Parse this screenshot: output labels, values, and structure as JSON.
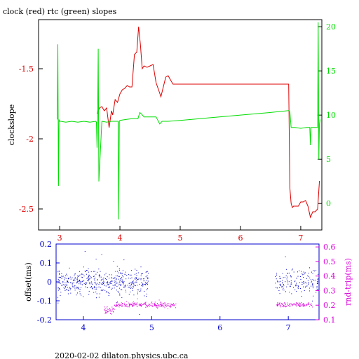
{
  "chart_data": [
    {
      "type": "line",
      "title": "clock (red) rtc (green) slopes",
      "ylabel": "clockslope",
      "xlim": [
        2.65,
        7.35
      ],
      "ylim": [
        -2.65,
        -1.15
      ],
      "y2lim": [
        -3.0,
        20.8
      ],
      "x_ticks": [
        3,
        4,
        5,
        6,
        7
      ],
      "y_ticks": [
        -1.5,
        -2,
        -2.5
      ],
      "y_tick_labels": [
        "-1.5",
        "-2",
        "-2.5"
      ],
      "y2_ticks": [
        0,
        5,
        10,
        15,
        20
      ],
      "colors": {
        "axis": "#000000",
        "left": "#dd0000",
        "right": "#00dd00",
        "bottom": "#dd0000"
      },
      "series": [
        {
          "color": "#dd0000",
          "axis": "left",
          "x": [
            3.62,
            3.66,
            3.7,
            3.74,
            3.78,
            3.82,
            3.86,
            3.88,
            3.92,
            3.96,
            4.0,
            4.04,
            4.08,
            4.12,
            4.16,
            4.2,
            4.24,
            4.28,
            4.31,
            4.34,
            4.37,
            4.4,
            4.45,
            4.5,
            4.55,
            4.6,
            4.64,
            4.68,
            4.72,
            4.76,
            4.8,
            4.84,
            4.88,
            5.2,
            5.6,
            6.0,
            6.4,
            6.8,
            6.82,
            6.84,
            6.86,
            6.88,
            6.92,
            6.96,
            7.0,
            7.04,
            7.08,
            7.12,
            7.16,
            7.2,
            7.24,
            7.28,
            7.31
          ],
          "y": [
            -1.82,
            -1.78,
            -1.77,
            -1.8,
            -1.78,
            -1.92,
            -1.8,
            -1.83,
            -1.72,
            -1.74,
            -1.68,
            -1.65,
            -1.64,
            -1.62,
            -1.63,
            -1.63,
            -1.4,
            -1.38,
            -1.2,
            -1.33,
            -1.5,
            -1.48,
            -1.49,
            -1.48,
            -1.47,
            -1.6,
            -1.65,
            -1.7,
            -1.63,
            -1.56,
            -1.55,
            -1.58,
            -1.61,
            -1.61,
            -1.61,
            -1.61,
            -1.61,
            -1.61,
            -2.35,
            -2.46,
            -2.49,
            -2.48,
            -2.48,
            -2.48,
            -2.45,
            -2.45,
            -2.44,
            -2.48,
            -2.56,
            -2.52,
            -2.52,
            -2.5,
            -2.3
          ]
        },
        {
          "color": "#00dd00",
          "axis": "right",
          "x": [
            2.96,
            2.97,
            2.98,
            2.99,
            3.0,
            3.02,
            3.1,
            3.2,
            3.3,
            3.4,
            3.5,
            3.6,
            3.61,
            3.62,
            3.63,
            3.64,
            3.65,
            3.7,
            3.78,
            3.86,
            3.94,
            3.97,
            3.98,
            3.99,
            4.0,
            4.1,
            4.2,
            4.3,
            4.33,
            4.36,
            4.4,
            4.5,
            4.6,
            4.66,
            4.7,
            4.8,
            5.0,
            5.5,
            6.0,
            6.5,
            6.8,
            6.82,
            6.84,
            6.9,
            7.0,
            7.1,
            7.15,
            7.16,
            7.17,
            7.18,
            7.25,
            7.28,
            7.29,
            7.3,
            7.31,
            7.32
          ],
          "y": [
            9.5,
            18.0,
            2.0,
            9.5,
            9.3,
            9.3,
            9.2,
            9.3,
            9.2,
            9.3,
            9.2,
            9.3,
            9.2,
            6.3,
            9.5,
            17.5,
            2.5,
            9.3,
            9.2,
            9.3,
            9.3,
            9.3,
            -1.8,
            9.3,
            9.4,
            9.5,
            9.6,
            9.6,
            10.3,
            10.1,
            9.8,
            9.8,
            9.8,
            9.0,
            9.3,
            9.3,
            9.4,
            9.7,
            10.0,
            10.3,
            10.5,
            10.4,
            8.6,
            8.6,
            8.5,
            8.6,
            8.6,
            6.6,
            8.6,
            8.6,
            8.6,
            8.6,
            20.5,
            5.0,
            9.0,
            9.5
          ]
        }
      ]
    },
    {
      "type": "scatter",
      "ylabel": "offset(ms)",
      "y2label": "rnd-trip(ms)",
      "xlim": [
        3.6,
        7.45
      ],
      "ylim": [
        -0.2,
        0.2
      ],
      "y2lim": [
        0.1,
        0.62
      ],
      "x_ticks": [
        4,
        5,
        6,
        7
      ],
      "y_ticks": [
        0.2,
        0.1,
        0,
        -0.1,
        -0.2
      ],
      "y_tick_labels": [
        "0.2",
        "0.1",
        "0",
        "-0.1",
        "-0.2"
      ],
      "y2_ticks": [
        0.1,
        0.2,
        0.3,
        0.4,
        0.5,
        0.6
      ],
      "colors": {
        "left": "#0000cc",
        "right": "#dd00dd"
      },
      "series": [
        {
          "color": "#0000cc",
          "axis": "left",
          "clusters": [
            {
              "x": [
                3.62,
                4.3
              ],
              "center": 0.0,
              "spread": 0.045,
              "n": 260
            },
            {
              "x": [
                4.3,
                4.95
              ],
              "center": 0.0,
              "spread": 0.05,
              "n": 230
            },
            {
              "x": [
                6.8,
                7.45
              ],
              "center": 0.0,
              "spread": 0.05,
              "n": 160
            }
          ]
        },
        {
          "color": "#dd00dd",
          "axis": "right",
          "clusters": [
            {
              "x": [
                4.3,
                4.45
              ],
              "center": 0.165,
              "spread": 0.02,
              "n": 40
            },
            {
              "x": [
                4.45,
                5.35
              ],
              "center": 0.205,
              "spread": 0.012,
              "n": 220
            },
            {
              "x": [
                6.82,
                7.35
              ],
              "center": 0.205,
              "spread": 0.012,
              "n": 120
            }
          ]
        }
      ]
    }
  ],
  "footer": "2020-02-02 dilaton.physics.ubc.ca"
}
